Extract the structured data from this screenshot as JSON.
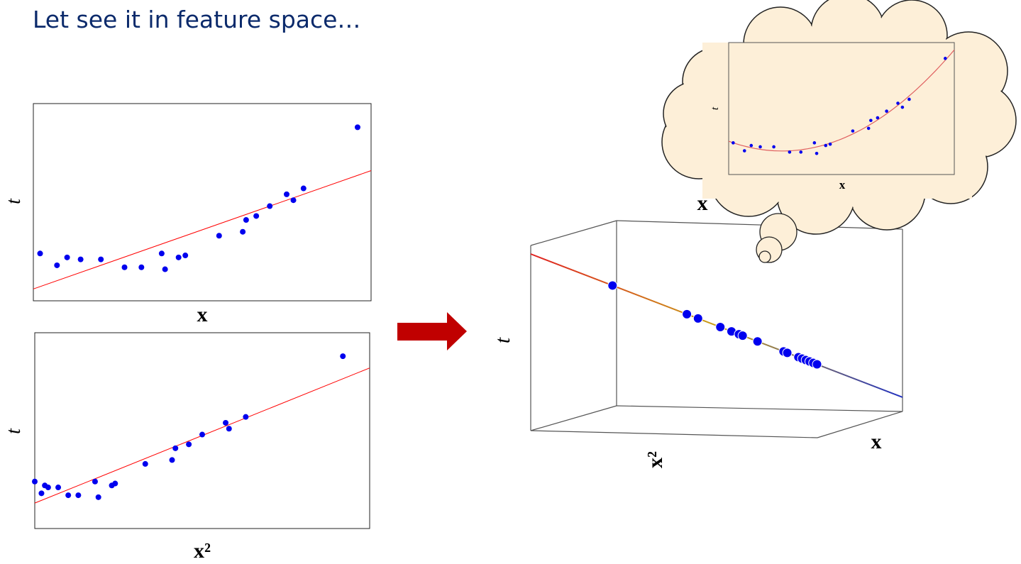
{
  "title": "Let see it in feature space…",
  "colors": {
    "title": "#0b2a6b",
    "points": "#0000ee",
    "fit_line": "#ff0000",
    "arrow": "#c00000",
    "cloud_fill": "#fdefd8",
    "line3d_start": "#e02020",
    "line3d_mid": "#c8a018",
    "line3d_end": "#2030c0"
  },
  "chart_data": [
    {
      "type": "scatter",
      "xlabel": "x",
      "ylabel": "t",
      "points": [
        [
          0.02,
          0.24
        ],
        [
          0.07,
          0.18
        ],
        [
          0.1,
          0.22
        ],
        [
          0.14,
          0.21
        ],
        [
          0.2,
          0.21
        ],
        [
          0.27,
          0.17
        ],
        [
          0.32,
          0.17
        ],
        [
          0.38,
          0.24
        ],
        [
          0.39,
          0.16
        ],
        [
          0.43,
          0.22
        ],
        [
          0.45,
          0.23
        ],
        [
          0.55,
          0.33
        ],
        [
          0.62,
          0.35
        ],
        [
          0.63,
          0.41
        ],
        [
          0.66,
          0.43
        ],
        [
          0.7,
          0.48
        ],
        [
          0.75,
          0.54
        ],
        [
          0.77,
          0.51
        ],
        [
          0.8,
          0.57
        ],
        [
          0.96,
          0.88
        ]
      ],
      "fit_line": [
        [
          0,
          0.06
        ],
        [
          1,
          0.66
        ]
      ]
    },
    {
      "type": "scatter",
      "xlabel": "x²",
      "ylabel": "t",
      "points": [
        [
          0,
          0.24
        ],
        [
          0.02,
          0.18
        ],
        [
          0.03,
          0.22
        ],
        [
          0.04,
          0.21
        ],
        [
          0.07,
          0.21
        ],
        [
          0.1,
          0.17
        ],
        [
          0.13,
          0.17
        ],
        [
          0.18,
          0.24
        ],
        [
          0.19,
          0.16
        ],
        [
          0.23,
          0.22
        ],
        [
          0.24,
          0.23
        ],
        [
          0.33,
          0.33
        ],
        [
          0.41,
          0.35
        ],
        [
          0.42,
          0.41
        ],
        [
          0.46,
          0.43
        ],
        [
          0.5,
          0.48
        ],
        [
          0.57,
          0.54
        ],
        [
          0.58,
          0.51
        ],
        [
          0.63,
          0.57
        ],
        [
          0.92,
          0.88
        ]
      ],
      "fit_line": [
        [
          0,
          0.13
        ],
        [
          1,
          0.82
        ]
      ]
    },
    {
      "type": "scatter",
      "axes": [
        "x²",
        "x",
        "t"
      ],
      "ylabel": "t",
      "points_along_line": [
        0.22,
        0.42,
        0.45,
        0.51,
        0.54,
        0.56,
        0.57,
        0.61,
        0.68,
        0.69,
        0.72,
        0.73,
        0.74,
        0.75,
        0.76,
        0.77
      ],
      "fit_line": [
        [
          0,
          0
        ],
        [
          1,
          1
        ]
      ]
    },
    {
      "type": "scatter",
      "xlabel": "x",
      "ylabel": "t",
      "points": [
        [
          0.02,
          0.24
        ],
        [
          0.07,
          0.18
        ],
        [
          0.1,
          0.22
        ],
        [
          0.14,
          0.21
        ],
        [
          0.2,
          0.21
        ],
        [
          0.27,
          0.17
        ],
        [
          0.32,
          0.17
        ],
        [
          0.38,
          0.24
        ],
        [
          0.39,
          0.16
        ],
        [
          0.43,
          0.22
        ],
        [
          0.45,
          0.23
        ],
        [
          0.55,
          0.33
        ],
        [
          0.62,
          0.35
        ],
        [
          0.63,
          0.41
        ],
        [
          0.66,
          0.43
        ],
        [
          0.7,
          0.48
        ],
        [
          0.75,
          0.54
        ],
        [
          0.77,
          0.51
        ],
        [
          0.8,
          0.57
        ],
        [
          0.96,
          0.88
        ]
      ],
      "fit_curve": "quadratic"
    }
  ],
  "floating_label": "x"
}
